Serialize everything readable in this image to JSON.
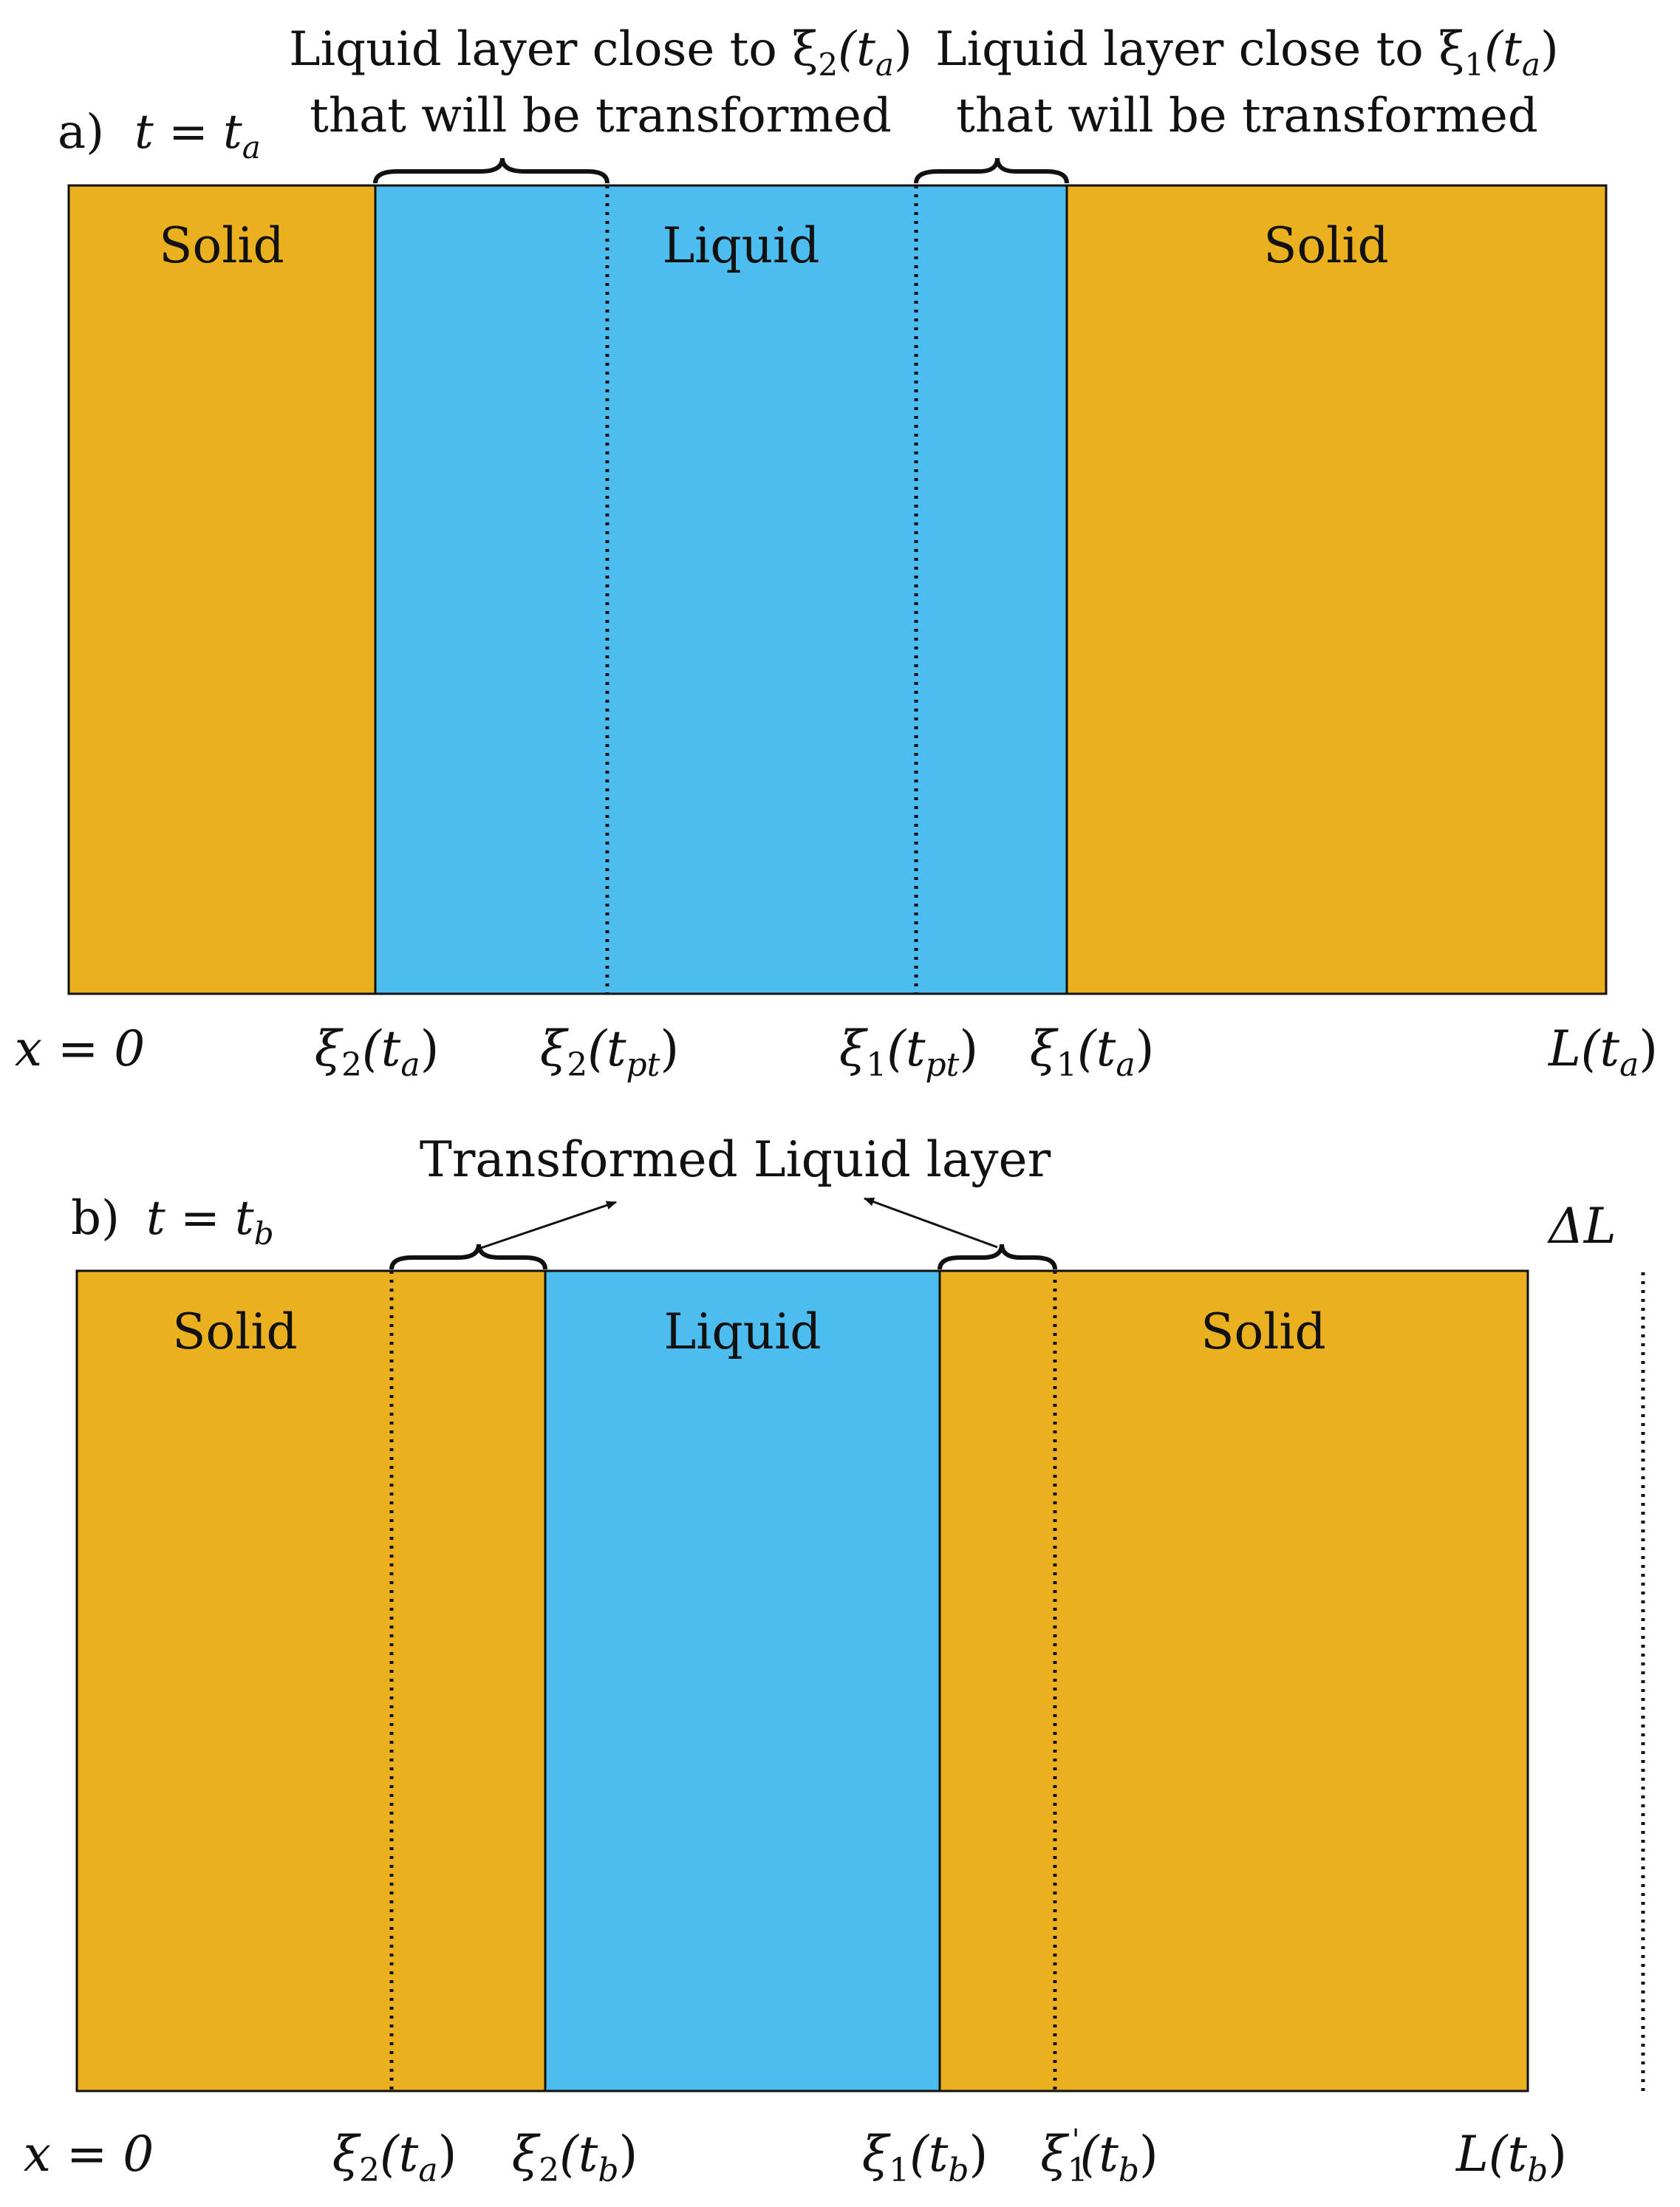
{
  "colors": {
    "solid": "#EAB020",
    "liquid": "#4DBCEE",
    "line": "#111111",
    "background": "#FFFFFF"
  },
  "panel_a": {
    "label": "a)",
    "time_eq": "t = t",
    "time_sub": "a",
    "region_labels": {
      "solid_left": "Solid",
      "liquid": "Liquid",
      "solid_right": "Solid"
    },
    "annotation_left": {
      "line1_text": "Liquid layer close to ξ",
      "line1_sub": "2",
      "line1_arg": "(t",
      "line1_arg_sub": "a",
      "line1_close": ")",
      "line2": "that will be transformed"
    },
    "annotation_right": {
      "line1_text": "Liquid layer close to ξ",
      "line1_sub": "1",
      "line1_arg": "(t",
      "line1_arg_sub": "a",
      "line1_close": ")",
      "line2": "that will be transformed"
    },
    "axis_labels": {
      "origin": "x = 0",
      "xi2_ta": {
        "base": "ξ",
        "sub": "2",
        "arg": "(t",
        "arg_sub": "a",
        "close": ")"
      },
      "xi2_tpt": {
        "base": "ξ",
        "sub": "2",
        "arg": "(t",
        "arg_sub": "pt",
        "close": ")"
      },
      "xi1_tpt": {
        "base": "ξ",
        "sub": "1",
        "arg": "(t",
        "arg_sub": "pt",
        "close": ")"
      },
      "xi1_ta": {
        "base": "ξ",
        "sub": "1",
        "arg": "(t",
        "arg_sub": "a",
        "close": ")"
      },
      "L_ta": {
        "base": "L",
        "arg": "(t",
        "arg_sub": "a",
        "close": ")"
      }
    }
  },
  "panel_b": {
    "label": "b)",
    "time_eq": "t = t",
    "time_sub": "b",
    "region_labels": {
      "solid_left": "Solid",
      "liquid": "Liquid",
      "solid_right": "Solid"
    },
    "annotation": "Transformed Liquid layer",
    "delta_L": "ΔL",
    "axis_labels": {
      "origin": "x = 0",
      "xi2_ta": {
        "base": "ξ",
        "sub": "2",
        "arg": "(t",
        "arg_sub": "a",
        "close": ")"
      },
      "xi2_tb": {
        "base": "ξ",
        "sub": "2",
        "arg": "(t",
        "arg_sub": "b",
        "close": ")"
      },
      "xi1_tb": {
        "base": "ξ",
        "sub": "1",
        "arg": "(t",
        "arg_sub": "b",
        "close": ")"
      },
      "xi1p_tb": {
        "base": "ξ",
        "sub": "1",
        "sup": "'",
        "arg": "(t",
        "arg_sub": "b",
        "close": ")"
      },
      "L_tb": {
        "base": "L",
        "arg": "(t",
        "arg_sub": "b",
        "close": ")"
      }
    }
  }
}
